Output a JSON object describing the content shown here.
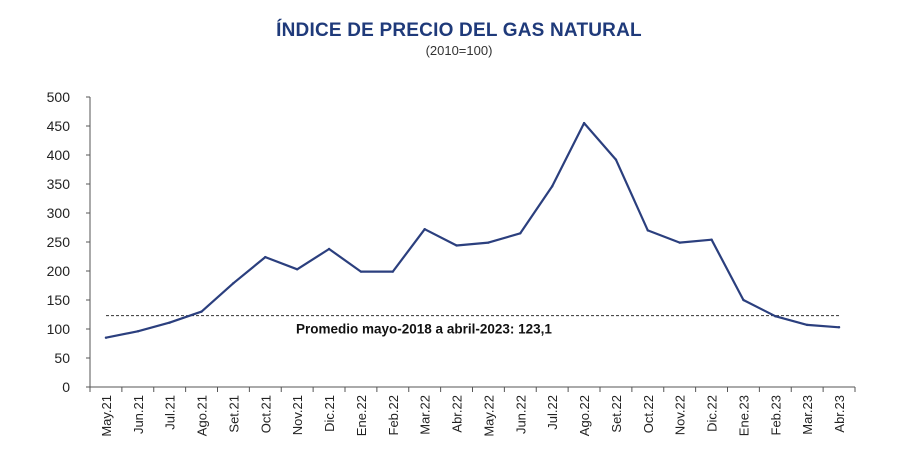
{
  "chart_data": {
    "type": "line",
    "title": "ÍNDICE DE PRECIO DEL GAS NATURAL",
    "subtitle": "(2010=100)",
    "categories": [
      "May.21",
      "Jun.21",
      "Jul.21",
      "Ago.21",
      "Set.21",
      "Oct.21",
      "Nov.21",
      "Dic.21",
      "Ene.22",
      "Feb.22",
      "Mar.22",
      "Abr.22",
      "May.22",
      "Jun.22",
      "Jul.22",
      "Ago.22",
      "Set.22",
      "Oct.22",
      "Nov.22",
      "Dic.22",
      "Ene.23",
      "Feb.23",
      "Mar.23",
      "Abr.23"
    ],
    "series": [
      {
        "values": [
          85,
          96,
          111,
          130,
          179,
          224,
          203,
          238,
          199,
          199,
          272,
          244,
          249,
          265,
          346,
          455,
          392,
          270,
          249,
          254,
          150,
          122,
          107,
          103
        ]
      }
    ],
    "reference_line": {
      "value": 123.1,
      "label": "Promedio mayo-2018 a abril-2023: 123,1"
    },
    "ylim": [
      0,
      500
    ],
    "yticks": [
      0,
      50,
      100,
      150,
      200,
      250,
      300,
      350,
      400,
      450,
      500
    ],
    "grid": false,
    "colors": {
      "line": "#2b3f7e",
      "reference": "#333333",
      "title": "#1f3a7a"
    }
  }
}
